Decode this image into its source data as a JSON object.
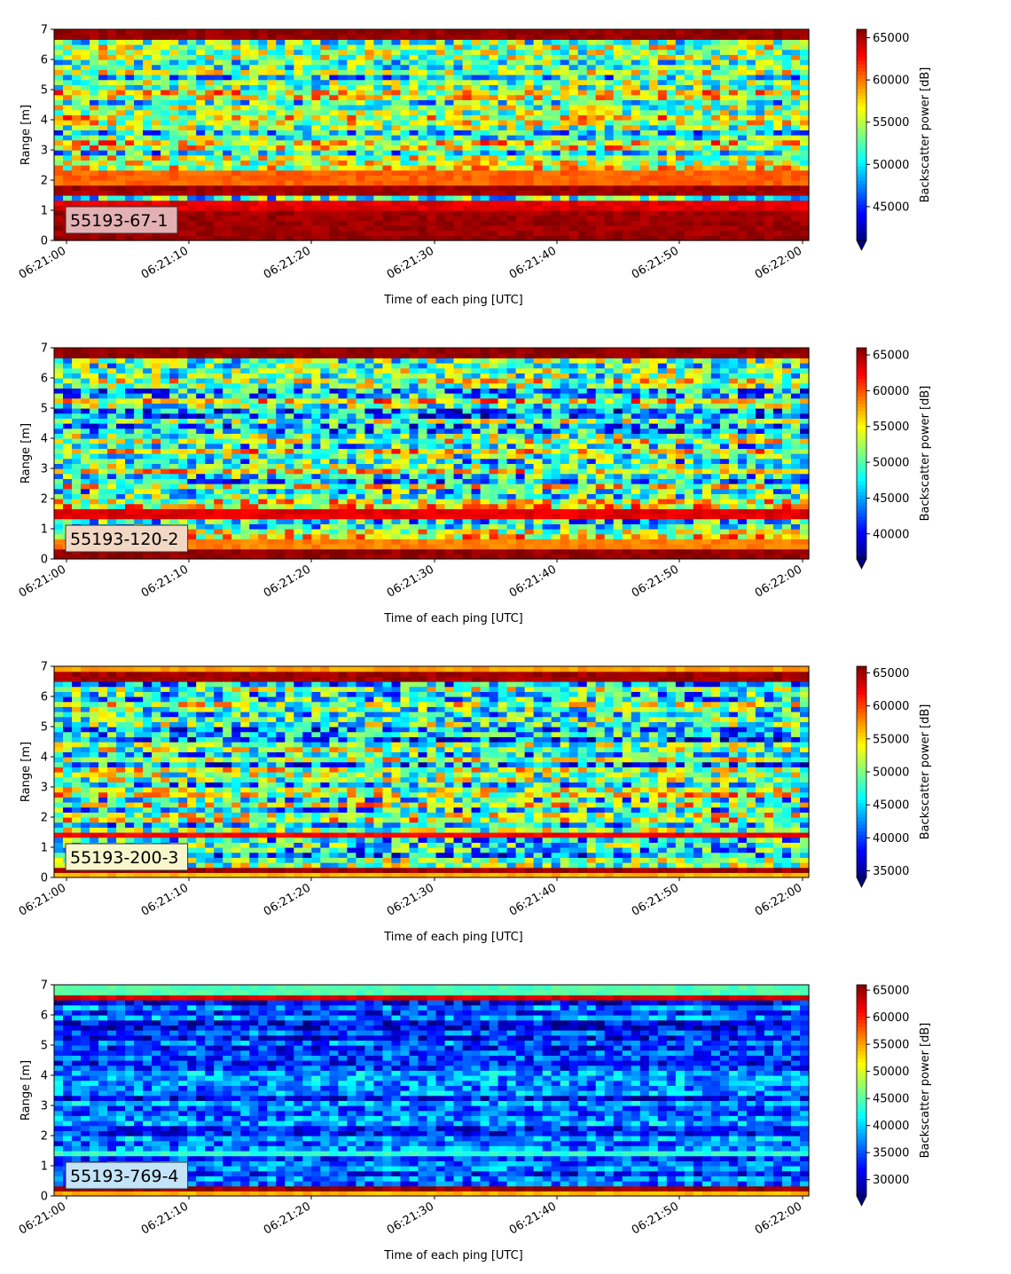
{
  "chart_data": [
    {
      "type": "heatmap",
      "label_box": "55193-67-1",
      "label_box_color": "#e3b1b3",
      "xlabel": "Time of each ping [UTC]",
      "ylabel": "Range [m]",
      "x_ticks": [
        "06:21:00",
        "06:21:10",
        "06:21:20",
        "06:21:30",
        "06:21:40",
        "06:21:50",
        "06:22:00"
      ],
      "ylim": [
        0,
        7
      ],
      "y_ticks": [
        0,
        1,
        2,
        3,
        4,
        5,
        6,
        7
      ],
      "colorbar_label": "Backscatter power [dB]",
      "colorbar_range": [
        41000,
        66000
      ],
      "colorbar_ticks": [
        45000,
        50000,
        55000,
        60000,
        65000
      ],
      "colormap": "jet",
      "bands_m": [
        {
          "from": 0.0,
          "to": 0.25,
          "level": 0.99
        },
        {
          "from": 0.25,
          "to": 1.0,
          "level": 0.97
        },
        {
          "from": 1.0,
          "to": 1.4,
          "level": 0.9
        },
        {
          "from": 1.5,
          "to": 1.8,
          "level": 0.97
        },
        {
          "from": 1.8,
          "to": 2.4,
          "level": 0.78
        },
        {
          "from": 6.6,
          "to": 7.0,
          "level": 0.98
        }
      ],
      "mean_level": 0.5,
      "noise": 0.22
    },
    {
      "type": "heatmap",
      "label_box": "55193-120-2",
      "label_box_color": "#f2d8c4",
      "xlabel": "Time of each ping [UTC]",
      "ylabel": "Range [m]",
      "x_ticks": [
        "06:21:00",
        "06:21:10",
        "06:21:20",
        "06:21:30",
        "06:21:40",
        "06:21:50",
        "06:22:00"
      ],
      "ylim": [
        0,
        7
      ],
      "y_ticks": [
        0,
        1,
        2,
        3,
        4,
        5,
        6,
        7
      ],
      "colorbar_label": "Backscatter power [dB]",
      "colorbar_range": [
        36500,
        66000
      ],
      "colorbar_ticks": [
        40000,
        45000,
        50000,
        55000,
        60000,
        65000
      ],
      "colormap": "jet",
      "bands_m": [
        {
          "from": 0.0,
          "to": 0.35,
          "level": 0.98
        },
        {
          "from": 0.35,
          "to": 0.6,
          "level": 0.75
        },
        {
          "from": 1.4,
          "to": 1.6,
          "level": 0.9
        },
        {
          "from": 6.6,
          "to": 7.0,
          "level": 0.98
        }
      ],
      "mean_level": 0.45,
      "noise": 0.24
    },
    {
      "type": "heatmap",
      "label_box": "55193-200-3",
      "label_box_color": "#f8f6cc",
      "xlabel": "Time of each ping [UTC]",
      "ylabel": "Range [m]",
      "x_ticks": [
        "06:21:00",
        "06:21:10",
        "06:21:20",
        "06:21:30",
        "06:21:40",
        "06:21:50",
        "06:22:00"
      ],
      "ylim": [
        0,
        7
      ],
      "y_ticks": [
        0,
        1,
        2,
        3,
        4,
        5,
        6,
        7
      ],
      "colorbar_label": "Backscatter power [dB]",
      "colorbar_range": [
        34000,
        66000
      ],
      "colorbar_ticks": [
        35000,
        40000,
        45000,
        50000,
        55000,
        60000,
        65000
      ],
      "colormap": "jet",
      "bands_m": [
        {
          "from": 0.0,
          "to": 0.15,
          "level": 0.7
        },
        {
          "from": 0.15,
          "to": 0.4,
          "level": 0.97
        },
        {
          "from": 1.3,
          "to": 1.5,
          "level": 0.88
        },
        {
          "from": 6.5,
          "to": 6.9,
          "level": 0.97
        },
        {
          "from": 6.9,
          "to": 7.0,
          "level": 0.72
        }
      ],
      "mean_level": 0.42,
      "noise": 0.24
    },
    {
      "type": "heatmap",
      "label_box": "55193-769-4",
      "label_box_color": "#c3e3f8",
      "xlabel": "Time of each ping [UTC]",
      "ylabel": "Range [m]",
      "x_ticks": [
        "06:21:00",
        "06:21:10",
        "06:21:20",
        "06:21:30",
        "06:21:40",
        "06:21:50",
        "06:22:00"
      ],
      "ylim": [
        0,
        7
      ],
      "y_ticks": [
        0,
        1,
        2,
        3,
        4,
        5,
        6,
        7
      ],
      "colorbar_label": "Backscatter power [dB]",
      "colorbar_range": [
        27000,
        66000
      ],
      "colorbar_ticks": [
        30000,
        35000,
        40000,
        45000,
        50000,
        55000,
        60000,
        65000
      ],
      "colormap": "jet",
      "bands_m": [
        {
          "from": 0.0,
          "to": 0.12,
          "level": 0.7
        },
        {
          "from": 0.12,
          "to": 0.35,
          "level": 0.97
        },
        {
          "from": 1.3,
          "to": 1.45,
          "level": 0.42
        },
        {
          "from": 6.45,
          "to": 6.75,
          "level": 0.92
        },
        {
          "from": 6.75,
          "to": 7.0,
          "level": 0.45
        }
      ],
      "mean_level": 0.2,
      "noise": 0.12
    }
  ]
}
